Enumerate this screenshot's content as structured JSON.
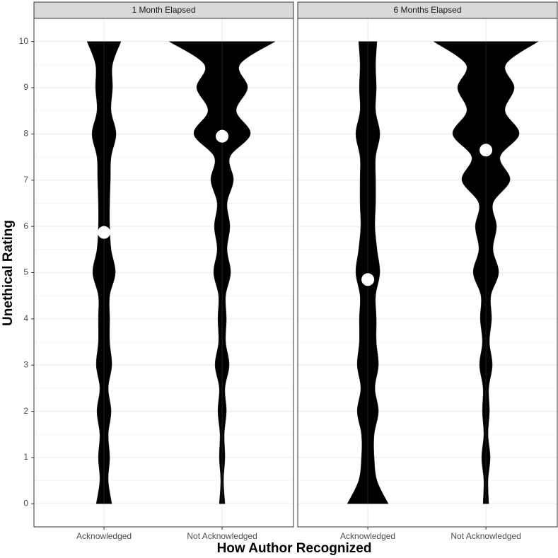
{
  "chart_data": {
    "type": "violin",
    "x_label": "How Author Recognized",
    "y_label": "Unethical Rating",
    "categories": [
      "Acknowledged",
      "Not Acknowledged"
    ],
    "ylim": [
      -0.5,
      10.5
    ],
    "yticks": [
      0,
      1,
      2,
      3,
      4,
      5,
      6,
      7,
      8,
      9,
      10
    ],
    "grid": true,
    "color": "#000000",
    "point_color": "#ffffff",
    "density_y": [
      0,
      0.5,
      1,
      1.5,
      2,
      2.5,
      3,
      3.5,
      4,
      4.5,
      5,
      5.5,
      6,
      6.5,
      7,
      7.5,
      8,
      8.5,
      9,
      9.5,
      10
    ],
    "facets": [
      {
        "title": "1 Month Elapsed",
        "means": [
          5.87,
          7.95
        ],
        "widths": [
          [
            11,
            6,
            8,
            6,
            10,
            6,
            11,
            8,
            8,
            8,
            16,
            10,
            8,
            8,
            9,
            10,
            17,
            10,
            12,
            12,
            24
          ],
          [
            4,
            2,
            4,
            3,
            6,
            4,
            10,
            5,
            6,
            5,
            12,
            7,
            11,
            7,
            16,
            11,
            40,
            20,
            36,
            25,
            75
          ]
        ]
      },
      {
        "title": "6 Months Elapsed",
        "means": [
          4.85,
          7.65
        ],
        "widths": [
          [
            29,
            13,
            9,
            9,
            15,
            10,
            15,
            12,
            12,
            11,
            17,
            13,
            10,
            11,
            11,
            11,
            17,
            11,
            12,
            11,
            13
          ],
          [
            4,
            3,
            6,
            3,
            5,
            4,
            9,
            5,
            8,
            7,
            18,
            10,
            15,
            10,
            34,
            20,
            47,
            27,
            40,
            28,
            74
          ]
        ]
      }
    ]
  }
}
